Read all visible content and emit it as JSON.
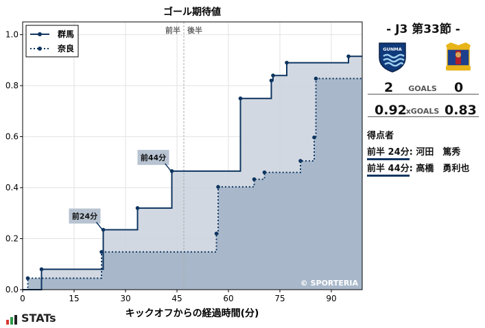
{
  "chart_data": {
    "type": "line",
    "title": "ゴール期待値",
    "xlabel": "キックオフからの経過時間(分)",
    "ylabel": "",
    "xlim": [
      0,
      99
    ],
    "ylim": [
      0,
      1.05
    ],
    "x_ticks": [
      0,
      15,
      30,
      45,
      60,
      75,
      90
    ],
    "y_ticks": [
      0.0,
      0.2,
      0.4,
      0.6,
      0.8,
      1.0
    ],
    "x_tick_labels": [
      "0",
      "15",
      "30",
      "45",
      "60",
      "75",
      "90"
    ],
    "y_tick_labels": [
      "0.0",
      "0.2",
      "0.4",
      "0.6",
      "0.8",
      "1.0"
    ],
    "grid": true,
    "legend_position": "top-left",
    "half_marker_x": 47,
    "half_labels": [
      "前半",
      "後半"
    ],
    "credit": "© SPORTERIA",
    "series": [
      {
        "name": "群馬",
        "color": "#0d3460",
        "fill": "#cdd4de",
        "line_style": "solid",
        "points": [
          [
            5.5,
            0.08
          ],
          [
            23.5,
            0.235
          ],
          [
            33.5,
            0.32
          ],
          [
            43.5,
            0.465
          ],
          [
            63.5,
            0.75
          ],
          [
            72.5,
            0.82
          ],
          [
            73,
            0.84
          ],
          [
            77,
            0.89
          ],
          [
            95,
            0.915
          ],
          [
            99,
            0.915
          ]
        ]
      },
      {
        "name": "奈良",
        "color": "#0d3460",
        "fill": "#a3b5c8",
        "line_style": "dotted",
        "points": [
          [
            1.5,
            0.045
          ],
          [
            23,
            0.148
          ],
          [
            56.5,
            0.22
          ],
          [
            57,
            0.403
          ],
          [
            67.5,
            0.433
          ],
          [
            70.5,
            0.46
          ],
          [
            81,
            0.505
          ],
          [
            85,
            0.597
          ],
          [
            85.5,
            0.828
          ],
          [
            99,
            0.828
          ]
        ]
      }
    ],
    "annotations": [
      {
        "label": "前24分",
        "x": 23.5,
        "y": 0.235
      },
      {
        "label": "前44分",
        "x": 43.5,
        "y": 0.465
      }
    ]
  },
  "match": {
    "title": "- J3 第33節 -",
    "home_team": "群馬",
    "away_team": "奈良",
    "home_logo_text": "GUNMA",
    "home_goals": "2",
    "away_goals": "0",
    "goals_label": "GOALS",
    "home_xg": "0.92",
    "away_xg": "0.83",
    "xg_label": "xGOALS",
    "scorers_title": "得点者",
    "scorers": [
      {
        "time": "前半 24分",
        "name": "河田　篤秀"
      },
      {
        "time": "前半 44分",
        "name": "高橋　勇利也"
      }
    ]
  },
  "brand": {
    "name": "STATs"
  }
}
